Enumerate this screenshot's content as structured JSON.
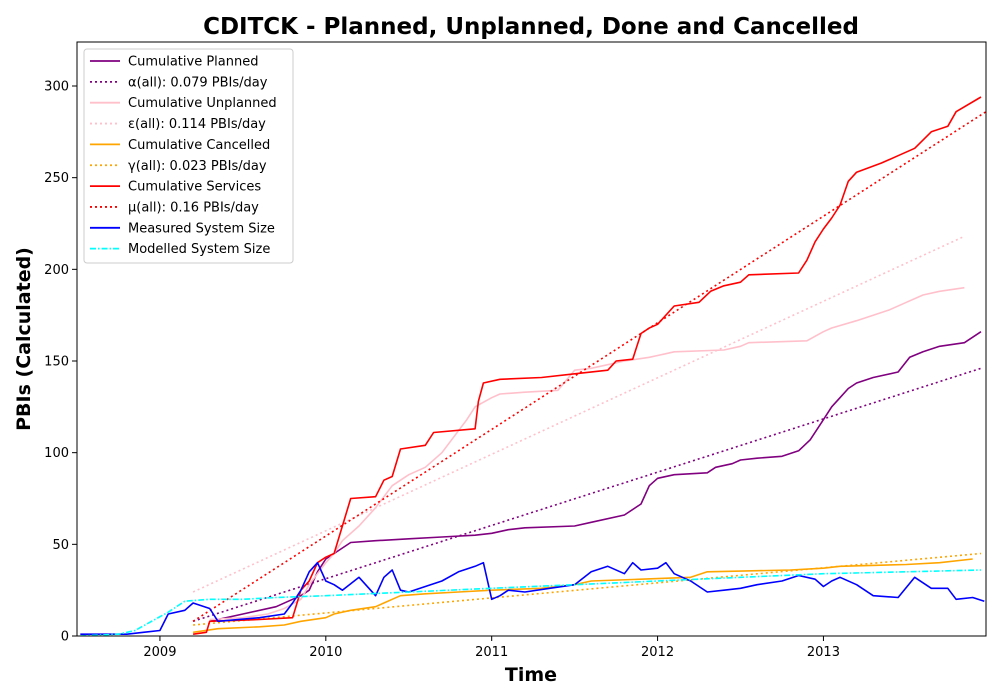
{
  "chart_data": {
    "type": "line",
    "title": "CDITCK - Planned, Unplanned, Done  and Cancelled",
    "xlabel": "Time",
    "ylabel": "PBIs (Calculated)",
    "xlim": [
      2008.5,
      2013.98
    ],
    "ylim": [
      0,
      324
    ],
    "x_ticks": [
      2009,
      2010,
      2011,
      2012,
      2013
    ],
    "y_ticks": [
      0,
      50,
      100,
      150,
      200,
      250,
      300
    ],
    "grid": false,
    "legend_position": "top-left",
    "series": [
      {
        "name": "Cumulative Planned",
        "color": "#800080",
        "style": "solid",
        "points": [
          [
            2009.3,
            8
          ],
          [
            2009.5,
            12
          ],
          [
            2009.7,
            16
          ],
          [
            2009.8,
            20
          ],
          [
            2009.85,
            22
          ],
          [
            2009.9,
            25
          ],
          [
            2009.95,
            35
          ],
          [
            2010.0,
            42
          ],
          [
            2010.05,
            45
          ],
          [
            2010.1,
            48
          ],
          [
            2010.15,
            51
          ],
          [
            2010.3,
            52
          ],
          [
            2010.5,
            53
          ],
          [
            2010.7,
            54
          ],
          [
            2010.9,
            55
          ],
          [
            2011.0,
            56
          ],
          [
            2011.1,
            58
          ],
          [
            2011.2,
            59
          ],
          [
            2011.5,
            60
          ],
          [
            2011.6,
            62
          ],
          [
            2011.8,
            66
          ],
          [
            2011.9,
            72
          ],
          [
            2011.95,
            82
          ],
          [
            2012.0,
            86
          ],
          [
            2012.1,
            88
          ],
          [
            2012.3,
            89
          ],
          [
            2012.35,
            92
          ],
          [
            2012.45,
            94
          ],
          [
            2012.5,
            96
          ],
          [
            2012.6,
            97
          ],
          [
            2012.75,
            98
          ],
          [
            2012.85,
            101
          ],
          [
            2012.92,
            107
          ],
          [
            2013.0,
            118
          ],
          [
            2013.05,
            125
          ],
          [
            2013.1,
            130
          ],
          [
            2013.15,
            135
          ],
          [
            2013.2,
            138
          ],
          [
            2013.3,
            141
          ],
          [
            2013.45,
            144
          ],
          [
            2013.52,
            152
          ],
          [
            2013.6,
            155
          ],
          [
            2013.7,
            158
          ],
          [
            2013.85,
            160
          ],
          [
            2013.95,
            166
          ]
        ]
      },
      {
        "name": "α(all): 0.079 PBIs/day",
        "color": "#800080",
        "style": "dotted",
        "points": [
          [
            2009.2,
            8
          ],
          [
            2013.95,
            146
          ]
        ]
      },
      {
        "name": "Cumulative Unplanned",
        "color": "#ffc0cb",
        "style": "solid",
        "points": [
          [
            2009.3,
            9
          ],
          [
            2009.5,
            10
          ],
          [
            2009.65,
            12
          ],
          [
            2009.75,
            15
          ],
          [
            2009.85,
            20
          ],
          [
            2009.9,
            28
          ],
          [
            2010.0,
            40
          ],
          [
            2010.05,
            45
          ],
          [
            2010.1,
            52
          ],
          [
            2010.2,
            60
          ],
          [
            2010.3,
            70
          ],
          [
            2010.4,
            82
          ],
          [
            2010.5,
            88
          ],
          [
            2010.6,
            92
          ],
          [
            2010.7,
            100
          ],
          [
            2010.8,
            112
          ],
          [
            2010.85,
            118
          ],
          [
            2010.9,
            125
          ],
          [
            2011.0,
            130
          ],
          [
            2011.05,
            132
          ],
          [
            2011.2,
            133
          ],
          [
            2011.4,
            134
          ],
          [
            2011.5,
            145
          ],
          [
            2011.6,
            146
          ],
          [
            2011.8,
            150
          ],
          [
            2011.95,
            152
          ],
          [
            2012.0,
            153
          ],
          [
            2012.05,
            154
          ],
          [
            2012.1,
            155
          ],
          [
            2012.4,
            156
          ],
          [
            2012.5,
            158
          ],
          [
            2012.55,
            160
          ],
          [
            2012.9,
            161
          ],
          [
            2013.0,
            166
          ],
          [
            2013.05,
            168
          ],
          [
            2013.2,
            172
          ],
          [
            2013.3,
            175
          ],
          [
            2013.4,
            178
          ],
          [
            2013.5,
            182
          ],
          [
            2013.6,
            186
          ],
          [
            2013.7,
            188
          ],
          [
            2013.85,
            190
          ]
        ]
      },
      {
        "name": "ε(all): 0.114 PBIs/day",
        "color": "#ffc0cb",
        "style": "dotted",
        "points": [
          [
            2009.2,
            24
          ],
          [
            2013.85,
            218
          ]
        ]
      },
      {
        "name": "Cumulative Cancelled",
        "color": "#ffa500",
        "style": "solid",
        "points": [
          [
            2009.2,
            2
          ],
          [
            2009.35,
            4
          ],
          [
            2009.6,
            5
          ],
          [
            2009.75,
            6
          ],
          [
            2009.85,
            8
          ],
          [
            2010.0,
            10
          ],
          [
            2010.05,
            12
          ],
          [
            2010.15,
            14
          ],
          [
            2010.3,
            16
          ],
          [
            2010.35,
            18
          ],
          [
            2010.4,
            20
          ],
          [
            2010.45,
            22
          ],
          [
            2010.6,
            23
          ],
          [
            2010.8,
            24
          ],
          [
            2011.0,
            25
          ],
          [
            2011.3,
            26
          ],
          [
            2011.5,
            28
          ],
          [
            2011.6,
            30
          ],
          [
            2011.9,
            31
          ],
          [
            2012.2,
            32
          ],
          [
            2012.3,
            35
          ],
          [
            2012.8,
            36
          ],
          [
            2013.0,
            37
          ],
          [
            2013.1,
            38
          ],
          [
            2013.5,
            39
          ],
          [
            2013.7,
            40
          ],
          [
            2013.9,
            42
          ]
        ]
      },
      {
        "name": "γ(all): 0.023 PBIs/day",
        "color": "#ffa500",
        "style": "dotted",
        "points": [
          [
            2009.2,
            6
          ],
          [
            2013.95,
            45
          ]
        ]
      },
      {
        "name": "Cumulative Services",
        "color": "#ff0000",
        "style": "solid",
        "points": [
          [
            2009.2,
            1
          ],
          [
            2009.28,
            2
          ],
          [
            2009.3,
            8
          ],
          [
            2009.6,
            9
          ],
          [
            2009.8,
            10
          ],
          [
            2009.85,
            25
          ],
          [
            2009.9,
            30
          ],
          [
            2009.95,
            40
          ],
          [
            2010.0,
            43
          ],
          [
            2010.05,
            45
          ],
          [
            2010.1,
            60
          ],
          [
            2010.15,
            75
          ],
          [
            2010.3,
            76
          ],
          [
            2010.35,
            85
          ],
          [
            2010.4,
            87
          ],
          [
            2010.45,
            102
          ],
          [
            2010.6,
            104
          ],
          [
            2010.65,
            111
          ],
          [
            2010.9,
            113
          ],
          [
            2010.92,
            128
          ],
          [
            2010.95,
            138
          ],
          [
            2011.05,
            140
          ],
          [
            2011.3,
            141
          ],
          [
            2011.5,
            143
          ],
          [
            2011.7,
            145
          ],
          [
            2011.75,
            150
          ],
          [
            2011.85,
            151
          ],
          [
            2011.9,
            165
          ],
          [
            2011.95,
            168
          ],
          [
            2012.0,
            170
          ],
          [
            2012.1,
            180
          ],
          [
            2012.25,
            182
          ],
          [
            2012.32,
            188
          ],
          [
            2012.4,
            191
          ],
          [
            2012.5,
            193
          ],
          [
            2012.55,
            197
          ],
          [
            2012.85,
            198
          ],
          [
            2012.9,
            205
          ],
          [
            2012.95,
            215
          ],
          [
            2013.0,
            222
          ],
          [
            2013.05,
            228
          ],
          [
            2013.1,
            235
          ],
          [
            2013.15,
            248
          ],
          [
            2013.2,
            253
          ],
          [
            2013.35,
            258
          ],
          [
            2013.45,
            262
          ],
          [
            2013.55,
            266
          ],
          [
            2013.65,
            275
          ],
          [
            2013.75,
            278
          ],
          [
            2013.8,
            286
          ],
          [
            2013.95,
            294
          ]
        ]
      },
      {
        "name": "μ(all): 0.16 PBIs/day",
        "color": "#ff0000",
        "style": "dotted",
        "points": [
          [
            2009.2,
            8
          ],
          [
            2013.98,
            286
          ]
        ]
      },
      {
        "name": "Measured System Size",
        "color": "#0000ff",
        "style": "solid",
        "points": [
          [
            2008.52,
            1
          ],
          [
            2008.8,
            1
          ],
          [
            2008.9,
            2
          ],
          [
            2009.0,
            3
          ],
          [
            2009.05,
            12
          ],
          [
            2009.15,
            14
          ],
          [
            2009.2,
            18
          ],
          [
            2009.3,
            15
          ],
          [
            2009.35,
            8
          ],
          [
            2009.6,
            10
          ],
          [
            2009.75,
            12
          ],
          [
            2009.8,
            18
          ],
          [
            2009.85,
            25
          ],
          [
            2009.9,
            35
          ],
          [
            2009.95,
            40
          ],
          [
            2010.0,
            30
          ],
          [
            2010.05,
            28
          ],
          [
            2010.1,
            25
          ],
          [
            2010.2,
            32
          ],
          [
            2010.3,
            22
          ],
          [
            2010.35,
            32
          ],
          [
            2010.4,
            36
          ],
          [
            2010.45,
            25
          ],
          [
            2010.5,
            24
          ],
          [
            2010.6,
            27
          ],
          [
            2010.7,
            30
          ],
          [
            2010.8,
            35
          ],
          [
            2010.9,
            38
          ],
          [
            2010.95,
            40
          ],
          [
            2011.0,
            20
          ],
          [
            2011.05,
            22
          ],
          [
            2011.1,
            25
          ],
          [
            2011.2,
            24
          ],
          [
            2011.35,
            26
          ],
          [
            2011.5,
            28
          ],
          [
            2011.6,
            35
          ],
          [
            2011.7,
            38
          ],
          [
            2011.8,
            34
          ],
          [
            2011.85,
            40
          ],
          [
            2011.9,
            36
          ],
          [
            2012.0,
            37
          ],
          [
            2012.05,
            40
          ],
          [
            2012.1,
            34
          ],
          [
            2012.2,
            30
          ],
          [
            2012.3,
            24
          ],
          [
            2012.4,
            25
          ],
          [
            2012.5,
            26
          ],
          [
            2012.6,
            28
          ],
          [
            2012.75,
            30
          ],
          [
            2012.85,
            33
          ],
          [
            2012.95,
            31
          ],
          [
            2013.0,
            27
          ],
          [
            2013.05,
            30
          ],
          [
            2013.1,
            32
          ],
          [
            2013.2,
            28
          ],
          [
            2013.3,
            22
          ],
          [
            2013.45,
            21
          ],
          [
            2013.55,
            32
          ],
          [
            2013.65,
            26
          ],
          [
            2013.75,
            26
          ],
          [
            2013.8,
            20
          ],
          [
            2013.9,
            21
          ],
          [
            2013.97,
            19
          ]
        ]
      },
      {
        "name": "Modelled System Size",
        "color": "#00ffff",
        "style": "dashdot",
        "points": [
          [
            2008.52,
            0
          ],
          [
            2008.75,
            1
          ],
          [
            2008.85,
            3
          ],
          [
            2008.95,
            8
          ],
          [
            2009.05,
            13
          ],
          [
            2009.15,
            19
          ],
          [
            2009.3,
            20
          ],
          [
            2009.5,
            20
          ],
          [
            2009.7,
            21
          ],
          [
            2010.0,
            22
          ],
          [
            2010.5,
            24
          ],
          [
            2011.0,
            26
          ],
          [
            2011.5,
            28
          ],
          [
            2012.0,
            30
          ],
          [
            2012.5,
            32
          ],
          [
            2013.0,
            34
          ],
          [
            2013.5,
            35
          ],
          [
            2013.95,
            36
          ]
        ]
      }
    ]
  }
}
